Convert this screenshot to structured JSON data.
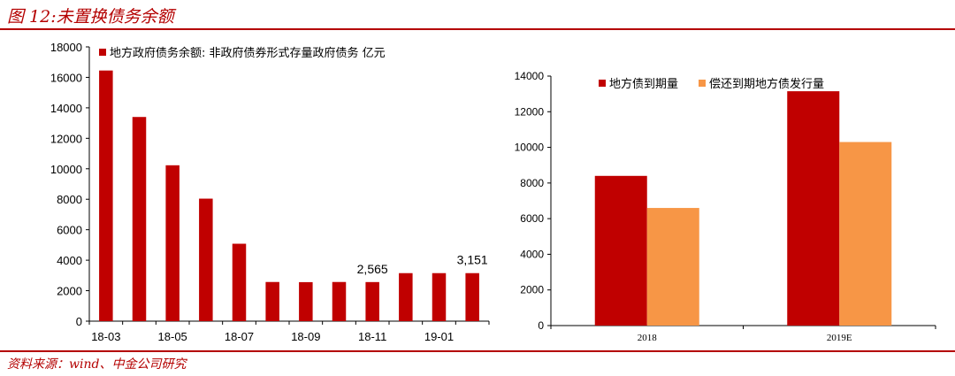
{
  "header": {
    "title": "图 12:未置换债务余额"
  },
  "footer": {
    "source": "资料来源：wind、中金公司研究"
  },
  "colors": {
    "accent": "#b40000",
    "red": "#c00000",
    "orange": "#f79646"
  },
  "chart_data": [
    {
      "type": "bar",
      "legend": "top-left",
      "ylim": [
        0,
        18000
      ],
      "yticks": [
        0,
        2000,
        4000,
        6000,
        8000,
        10000,
        12000,
        14000,
        16000,
        18000
      ],
      "categories": [
        "18-03",
        "18-04",
        "18-05",
        "18-06",
        "18-07",
        "18-08",
        "18-09",
        "18-10",
        "18-11",
        "18-12",
        "19-01",
        "19-02"
      ],
      "xtick_labels": [
        "18-03",
        "",
        "18-05",
        "",
        "18-07",
        "",
        "18-09",
        "",
        "18-11",
        "",
        "19-01",
        ""
      ],
      "series": [
        {
          "name": "地方政府债务余额: 非政府债券形式存量政府债务 亿元",
          "color": "#c00000",
          "values": [
            16450,
            13400,
            10230,
            8040,
            5080,
            2570,
            2560,
            2570,
            2565,
            3151,
            3151,
            3151
          ]
        }
      ],
      "data_labels": [
        {
          "index": 8,
          "text": "2,565"
        },
        {
          "index": 11,
          "text": "3,151"
        }
      ]
    },
    {
      "type": "bar",
      "legend": "top",
      "ylim": [
        0,
        14000
      ],
      "yticks": [
        0,
        2000,
        4000,
        6000,
        8000,
        10000,
        12000,
        14000
      ],
      "categories": [
        "2018",
        "2019E"
      ],
      "series": [
        {
          "name": "地方债到期量",
          "color": "#c00000",
          "values": [
            8400,
            13150
          ]
        },
        {
          "name": "偿还到期地方债发行量",
          "color": "#f79646",
          "values": [
            6600,
            10300
          ]
        }
      ]
    }
  ]
}
